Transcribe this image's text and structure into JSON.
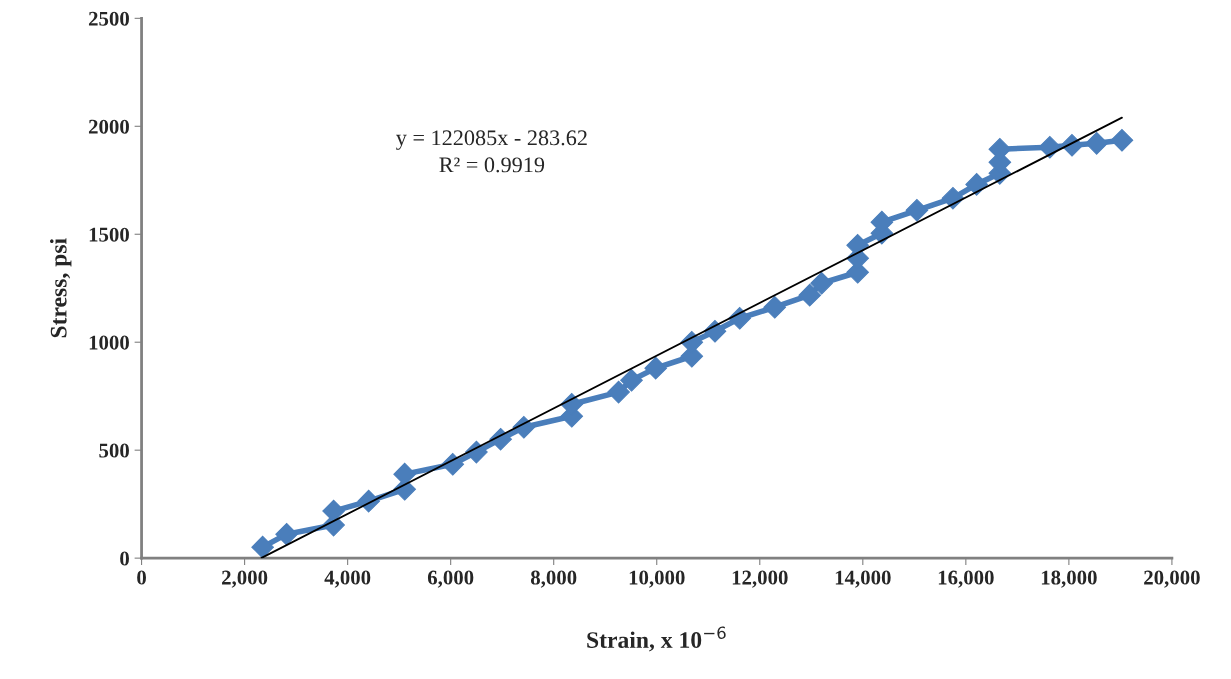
{
  "chart_data": {
    "type": "line",
    "xlabel": "Strain, x 10$^{−6}$",
    "ylabel": "Stress, psi",
    "annotations": [
      "y = 122085x - 283.62",
      "R² = 0.9919"
    ],
    "xlim": [
      0,
      20000
    ],
    "ylim": [
      0,
      2500
    ],
    "xticks": [
      0,
      {
        "value": 2000,
        "label": "2,000"
      },
      {
        "value": 4000,
        "label": "4,000"
      },
      {
        "value": 6000,
        "label": "6,000"
      },
      {
        "value": 8000,
        "label": "8,000"
      },
      {
        "value": 10000,
        "label": "10,000"
      },
      {
        "value": 12000,
        "label": "12,000"
      },
      {
        "value": 14000,
        "label": "14,000"
      },
      {
        "value": 16000,
        "label": "16,000"
      },
      {
        "value": 18000,
        "label": "18,000"
      },
      {
        "value": 20000,
        "label": "20,000"
      }
    ],
    "yticks": [
      0,
      500,
      1000,
      1500,
      2000,
      2500
    ],
    "grid": false,
    "legend": false,
    "series": [
      {
        "color": "#4a7ebb",
        "marker": "diamond",
        "line_style": "solid",
        "x": [
          2350,
          2816,
          3728,
          3728,
          4408,
          5107,
          5107,
          6040,
          6500,
          6970,
          7420,
          8350,
          8350,
          9260,
          9510,
          9980,
          10680,
          10680,
          11130,
          11610,
          12290,
          12970,
          13200,
          13900,
          13900,
          13900,
          14370,
          14370,
          15050,
          15750,
          16210,
          16660,
          16660,
          16660,
          17630,
          18060,
          18540,
          19030
        ],
        "values": [
          51,
          111,
          153,
          218,
          264,
          319,
          389,
          435,
          491,
          551,
          606,
          657,
          713,
          769,
          824,
          880,
          935,
          1000,
          1051,
          1111,
          1162,
          1218,
          1273,
          1324,
          1389,
          1449,
          1505,
          1556,
          1611,
          1667,
          1731,
          1782,
          1833,
          1894,
          1903,
          1912,
          1921,
          1935
        ]
      },
      {
        "color": "#000000",
        "marker": "none",
        "line_style": "solid",
        "x": [
          2330,
          19030
        ],
        "values": [
          1,
          2040
        ]
      }
    ]
  }
}
